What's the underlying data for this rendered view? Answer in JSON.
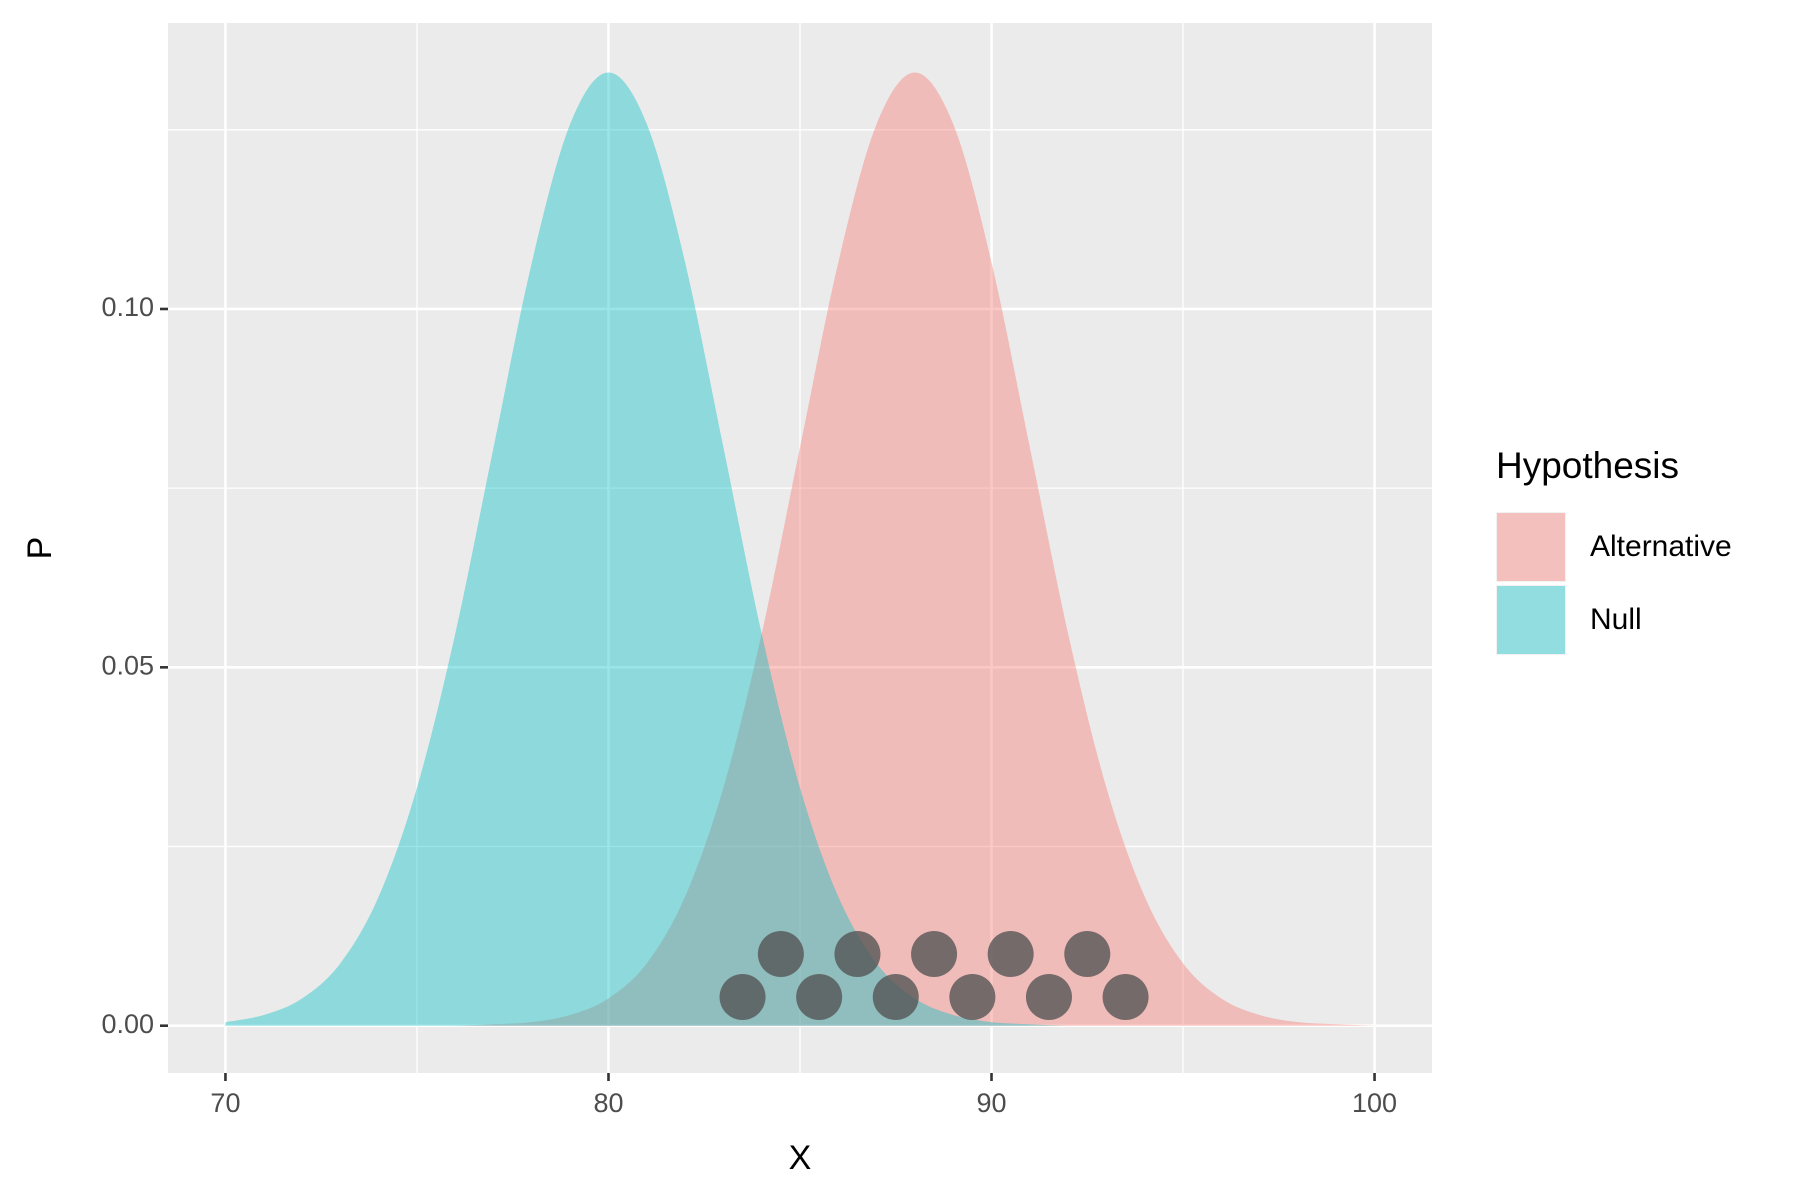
{
  "chart_data": {
    "type": "area",
    "x_label": "X",
    "y_label": "P",
    "legend_title": "Hypothesis",
    "legend_position": "right",
    "grid": true,
    "alpha": 0.4,
    "xlim": [
      68.5,
      101.5
    ],
    "ylim": [
      -0.0066,
      0.1399
    ],
    "xticks": [
      70,
      80,
      90,
      100
    ],
    "x_minor_ticks": [
      75,
      85,
      95
    ],
    "yticks": [
      {
        "value": 0,
        "label": "0.00"
      },
      {
        "value": 0.05,
        "label": "0.05"
      },
      {
        "value": 0.1,
        "label": "0.10"
      }
    ],
    "y_minor_ticks": [
      0.025,
      0.075,
      0.125
    ],
    "x": [
      70,
      71,
      72,
      73,
      74,
      75,
      76,
      77,
      78,
      79,
      80,
      81,
      82,
      83,
      84,
      85,
      86,
      87,
      88,
      89,
      90,
      91,
      92,
      93,
      94,
      95,
      96,
      97,
      98,
      99,
      100
    ],
    "series": [
      {
        "name": "Alternative",
        "color": "#F8766D",
        "values": [
          0,
          0,
          0,
          0,
          0,
          0,
          0,
          0.0002,
          0.0005,
          0.0015,
          0.0038,
          0.0087,
          0.018,
          0.0332,
          0.0547,
          0.0807,
          0.1065,
          0.1258,
          0.133,
          0.1258,
          0.1065,
          0.0807,
          0.0547,
          0.0332,
          0.018,
          0.0087,
          0.0038,
          0.0015,
          0.0005,
          0.0002,
          0
        ]
      },
      {
        "name": "Null",
        "color": "#00BFC4",
        "values": [
          0.0005,
          0.0015,
          0.0038,
          0.0087,
          0.018,
          0.0332,
          0.0547,
          0.0807,
          0.1065,
          0.1258,
          0.133,
          0.1258,
          0.1065,
          0.0807,
          0.0547,
          0.0332,
          0.018,
          0.0087,
          0.0038,
          0.0015,
          0.0005,
          0.0002,
          0,
          0,
          0,
          0,
          0,
          0,
          0,
          0,
          0
        ]
      }
    ],
    "points": {
      "color": "#555555",
      "alpha": 0.8,
      "x": [
        83.5,
        84.5,
        85.5,
        86.5,
        87.5,
        88.5,
        89.5,
        90.5,
        91.5,
        92.5,
        93.5
      ],
      "values": [
        0.004,
        0.01,
        0.004,
        0.01,
        0.004,
        0.01,
        0.004,
        0.01,
        0.004,
        0.01,
        0.004
      ]
    }
  }
}
